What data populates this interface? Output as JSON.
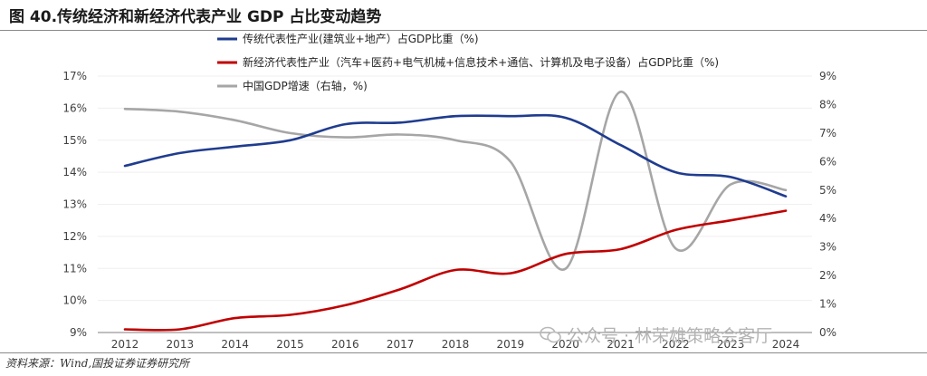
{
  "figure_title": "图 40.传统经济和新经济代表产业 GDP 占比变动趋势",
  "source": "资料来源：Wind,国投证券证券研究所",
  "watermark": "公众号 · 林荣雄策略会客厅",
  "chart_data": {
    "type": "line",
    "x": [
      "2012",
      "2013",
      "2014",
      "2015",
      "2016",
      "2017",
      "2018",
      "2019",
      "2020",
      "2021",
      "2022",
      "2023",
      "2024"
    ],
    "y_left": {
      "min": 9,
      "max": 17,
      "step": 1,
      "suffix": "%"
    },
    "y_right": {
      "min": 0,
      "max": 9,
      "step": 1,
      "suffix": "%"
    },
    "legend_position": "top-center",
    "series": [
      {
        "name": "传统代表性产业(建筑业+地产）占GDP比重（%)",
        "axis": "left",
        "color": "#1f3c8f",
        "values": [
          14.2,
          14.6,
          14.8,
          15.0,
          15.5,
          15.55,
          15.75,
          15.75,
          15.7,
          14.85,
          14.0,
          13.85,
          13.25
        ]
      },
      {
        "name": "新经济代表性产业（汽车+医药+电气机械+信息技术+通信、计算机及电子设备）占GDP比重（%)",
        "axis": "left",
        "color": "#c00000",
        "values": [
          9.1,
          9.1,
          9.45,
          9.55,
          9.85,
          10.35,
          10.95,
          10.85,
          11.45,
          11.6,
          12.2,
          12.5,
          12.8
        ]
      },
      {
        "name": "中国GDP增速（右轴，%)",
        "axis": "right",
        "color": "#a6a6a6",
        "values": [
          7.85,
          7.75,
          7.45,
          7.0,
          6.85,
          6.95,
          6.75,
          6.0,
          2.24,
          8.45,
          2.95,
          5.2,
          5.0
        ]
      }
    ]
  }
}
